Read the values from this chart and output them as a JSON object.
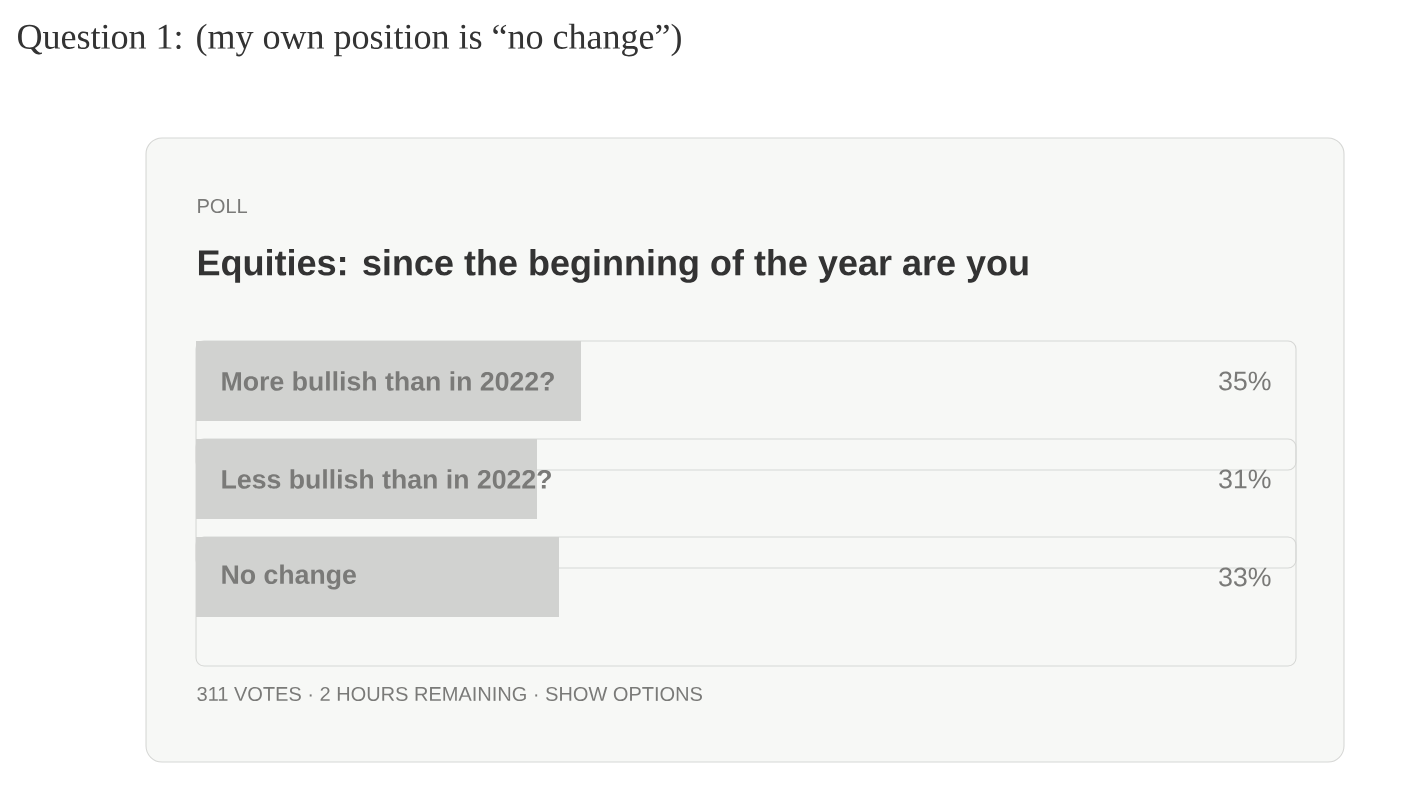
{
  "chart_data": {
    "type": "bar",
    "orientation": "horizontal",
    "subtitle": "POLL",
    "title": "Equities: since the beginning of the year are you",
    "annotations": [
      "Question 1: (my own position is “no change”)",
      "311 VOTES · 2 HOURS REMAINING · SHOW OPTIONS"
    ],
    "categories": [
      "More bullish than in 2022?",
      "Less bullish than in 2022?",
      "No change"
    ],
    "values": [
      35,
      31,
      33
    ],
    "color": "#d1d2d0",
    "value_labels": [
      "35%",
      "31%",
      "33%"
    ],
    "xlim": [
      0,
      100
    ]
  }
}
